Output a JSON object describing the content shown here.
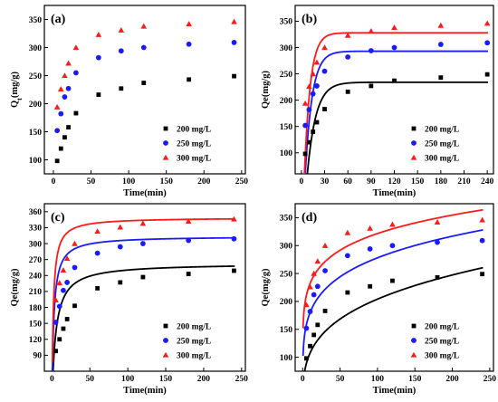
{
  "colors": {
    "s200": "#000000",
    "s250": "#1a1aff",
    "s300": "#ff1a1a"
  },
  "chart_data": [
    {
      "type": "scatter",
      "panel": "(a)",
      "xlabel": "Time(min)",
      "ylabel_main": "Q",
      "ylabel_sub": "t",
      "ylabel_rest": "(mg/g)",
      "xlim": [
        -12,
        255
      ],
      "ylim": [
        75,
        375
      ],
      "xticks": [
        0,
        50,
        100,
        150,
        200,
        250
      ],
      "yticks": [
        100,
        150,
        200,
        250,
        300,
        350
      ],
      "legend_position": "bottom-right",
      "x": [
        5,
        10,
        15,
        20,
        30,
        60,
        90,
        120,
        180,
        240
      ],
      "series": [
        {
          "name": "200 mg/L",
          "marker": "square",
          "values": [
            98,
            120,
            140,
            158,
            183,
            216,
            227,
            237,
            243,
            249
          ]
        },
        {
          "name": "250 mg/L",
          "marker": "circle",
          "values": [
            152,
            182,
            212,
            227,
            255,
            282,
            294,
            300,
            306,
            309
          ]
        },
        {
          "name": "300 mg/L",
          "marker": "triangle",
          "values": [
            194,
            226,
            250,
            272,
            300,
            323,
            331,
            338,
            342,
            346
          ]
        }
      ],
      "fits": []
    },
    {
      "type": "scatter",
      "panel": "(b)",
      "xlabel": "Time(min)",
      "ylabel": "Qe(mg/g)",
      "xlim": [
        -8,
        248
      ],
      "ylim": [
        60,
        380
      ],
      "xticks": [
        0,
        30,
        60,
        90,
        120,
        150,
        180,
        210,
        240
      ],
      "yticks": [
        100,
        150,
        200,
        250,
        300,
        350
      ],
      "legend_position": "bottom-right",
      "x": [
        5,
        10,
        15,
        20,
        30,
        60,
        90,
        120,
        180,
        240
      ],
      "series": [
        {
          "name": "200 mg/L",
          "marker": "square",
          "values": [
            98,
            120,
            140,
            158,
            183,
            216,
            227,
            237,
            243,
            249
          ]
        },
        {
          "name": "250 mg/L",
          "marker": "circle",
          "values": [
            152,
            182,
            212,
            227,
            255,
            282,
            294,
            300,
            306,
            309
          ]
        },
        {
          "name": "300 mg/L",
          "marker": "triangle",
          "values": [
            194,
            226,
            250,
            272,
            300,
            323,
            331,
            338,
            342,
            346
          ]
        }
      ],
      "fits": [
        {
          "model": "pfo",
          "qe": 234,
          "k": 0.09,
          "x0": 5
        },
        {
          "model": "pfo",
          "qe": 293,
          "k": 0.11,
          "x0": 3.5
        },
        {
          "model": "pfo",
          "qe": 328,
          "k": 0.13,
          "x0": 3
        }
      ]
    },
    {
      "type": "scatter",
      "panel": "(c)",
      "xlabel": "Time(min)",
      "ylabel": "Qe(mg/g)",
      "xlim": [
        -10,
        255
      ],
      "ylim": [
        60,
        375
      ],
      "xticks": [
        0,
        50,
        100,
        150,
        200,
        250
      ],
      "yticks": [
        90,
        120,
        150,
        180,
        210,
        240,
        270,
        300,
        330,
        360
      ],
      "legend_position": "bottom-right",
      "x": [
        5,
        10,
        15,
        20,
        30,
        60,
        90,
        120,
        180,
        240
      ],
      "series": [
        {
          "name": "200 mg/L",
          "marker": "square",
          "values": [
            98,
            120,
            140,
            158,
            183,
            216,
            227,
            237,
            243,
            249
          ]
        },
        {
          "name": "250 mg/L",
          "marker": "circle",
          "values": [
            152,
            182,
            212,
            227,
            255,
            282,
            294,
            300,
            306,
            309
          ]
        },
        {
          "name": "300 mg/L",
          "marker": "triangle",
          "values": [
            194,
            226,
            250,
            272,
            300,
            323,
            331,
            338,
            342,
            346
          ]
        }
      ],
      "fits": [
        {
          "model": "pso",
          "qe": 263,
          "k": 0.00075
        },
        {
          "model": "pso",
          "qe": 314,
          "k": 0.0013
        },
        {
          "model": "pso",
          "qe": 349,
          "k": 0.0016
        }
      ]
    },
    {
      "type": "scatter",
      "panel": "(d)",
      "xlabel": "Time(min)",
      "ylabel": "Qe(mg/g)",
      "xlim": [
        -10,
        255
      ],
      "ylim": [
        75,
        375
      ],
      "xticks": [
        0,
        50,
        100,
        150,
        200,
        250
      ],
      "yticks": [
        100,
        150,
        200,
        250,
        300,
        350
      ],
      "legend_position": "bottom-right",
      "x": [
        5,
        10,
        15,
        20,
        30,
        60,
        90,
        120,
        180,
        240
      ],
      "series": [
        {
          "name": "200 mg/L",
          "marker": "square",
          "values": [
            98,
            120,
            140,
            158,
            183,
            216,
            227,
            237,
            243,
            249
          ]
        },
        {
          "name": "250 mg/L",
          "marker": "circle",
          "values": [
            152,
            182,
            212,
            227,
            255,
            282,
            294,
            300,
            306,
            309
          ]
        },
        {
          "name": "300 mg/L",
          "marker": "triangle",
          "values": [
            194,
            226,
            250,
            272,
            300,
            323,
            331,
            338,
            342,
            346
          ]
        }
      ],
      "fits": [
        {
          "model": "power",
          "a": 57,
          "b": 0.277
        },
        {
          "model": "power",
          "a": 117,
          "b": 0.188
        },
        {
          "model": "power",
          "a": 168,
          "b": 0.141
        }
      ]
    }
  ]
}
